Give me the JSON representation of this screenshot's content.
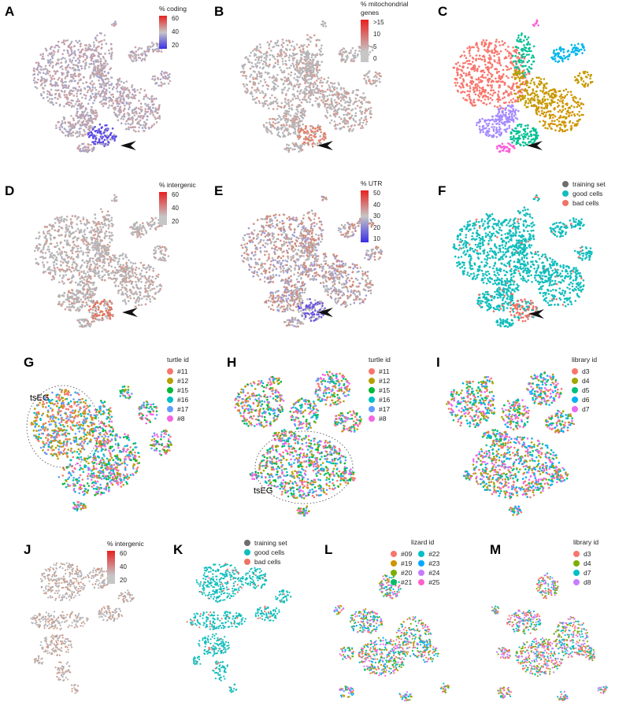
{
  "colors": {
    "base_gray": "#b5b5b9",
    "c1": "#f8766d",
    "c2": "#c49a00",
    "c3": "#53b400",
    "c4": "#00c094",
    "c5": "#00b6eb",
    "c6": "#a58aff",
    "c7": "#fb61d7",
    "teal": "#12bdbd",
    "grey_dot": "#6e6e6e",
    "bad": "#ef7466",
    "grad_blue": "#3a2ee6",
    "grad_gray": "#c6c6c6",
    "grad_red": "#e8201f"
  },
  "panels": [
    {
      "id": "A",
      "label": "A",
      "legend_type": "gradient",
      "legend_title": "% coding",
      "ticks": [
        "60",
        "40",
        "20"
      ],
      "grad": "blue-gray-red"
    },
    {
      "id": "B",
      "label": "B",
      "legend_type": "gradient",
      "legend_title": "% mitochondrial genes",
      "ticks": [
        ">15",
        "10",
        "5",
        "0"
      ],
      "grad": "gray-red"
    },
    {
      "id": "C",
      "label": "C",
      "legend_type": "none"
    },
    {
      "id": "D",
      "label": "D",
      "legend_type": "gradient",
      "legend_title": "% intergenic",
      "ticks": [
        "60",
        "40",
        "20"
      ],
      "grad": "gray-red"
    },
    {
      "id": "E",
      "label": "E",
      "legend_type": "gradient",
      "legend_title": "% UTR",
      "ticks": [
        "50",
        "40",
        "30",
        "20",
        "10"
      ],
      "grad": "blue-gray-red"
    },
    {
      "id": "F",
      "label": "F",
      "legend_type": "categorical",
      "legend_title": "",
      "items": [
        {
          "label": "training set",
          "color": "#6e6e6e"
        },
        {
          "label": "good cells",
          "color": "#12bdbd"
        },
        {
          "label": "bad cells",
          "color": "#ef7466"
        }
      ]
    },
    {
      "id": "G",
      "label": "G",
      "legend_type": "categorical",
      "legend_title": "turtle id",
      "items": [
        {
          "label": "#11",
          "color": "#f8766d"
        },
        {
          "label": "#12",
          "color": "#b79f00"
        },
        {
          "label": "#15",
          "color": "#00ba38"
        },
        {
          "label": "#16",
          "color": "#00bfc4"
        },
        {
          "label": "#17",
          "color": "#619cff"
        },
        {
          "label": "#8",
          "color": "#f564e3"
        }
      ],
      "annotation": "tsEG"
    },
    {
      "id": "H",
      "label": "H",
      "legend_type": "categorical",
      "legend_title": "turtle id",
      "items": [
        {
          "label": "#11",
          "color": "#f8766d"
        },
        {
          "label": "#12",
          "color": "#b79f00"
        },
        {
          "label": "#15",
          "color": "#00ba38"
        },
        {
          "label": "#16",
          "color": "#00bfc4"
        },
        {
          "label": "#17",
          "color": "#619cff"
        },
        {
          "label": "#8",
          "color": "#f564e3"
        }
      ],
      "annotation": "tsEG"
    },
    {
      "id": "I",
      "label": "I",
      "legend_type": "categorical",
      "legend_title": "library id",
      "items": [
        {
          "label": "d3",
          "color": "#f8766d"
        },
        {
          "label": "d4",
          "color": "#a3a500"
        },
        {
          "label": "d5",
          "color": "#00bf7d"
        },
        {
          "label": "d6",
          "color": "#00b0f6"
        },
        {
          "label": "d7",
          "color": "#e76bf3"
        }
      ]
    },
    {
      "id": "J",
      "label": "J",
      "legend_type": "gradient",
      "legend_title": "% intergenic",
      "ticks": [
        "60",
        "40",
        "20"
      ],
      "grad": "gray-red"
    },
    {
      "id": "K",
      "label": "K",
      "legend_type": "categorical",
      "legend_title": "",
      "items": [
        {
          "label": "training set",
          "color": "#6e6e6e"
        },
        {
          "label": "good cells",
          "color": "#12bdbd"
        },
        {
          "label": "bad cells",
          "color": "#ef7466"
        }
      ]
    },
    {
      "id": "L",
      "label": "L",
      "legend_type": "categorical2",
      "legend_title": "lizard id",
      "items": [
        {
          "label": "#09",
          "color": "#f8766d"
        },
        {
          "label": "#19",
          "color": "#cd9600"
        },
        {
          "label": "#20",
          "color": "#7cae00"
        },
        {
          "label": "#21",
          "color": "#00be67"
        },
        {
          "label": "#22",
          "color": "#00bfc4"
        },
        {
          "label": "#23",
          "color": "#00a9ff"
        },
        {
          "label": "#24",
          "color": "#c77cff"
        },
        {
          "label": "#25",
          "color": "#ff61cc"
        }
      ]
    },
    {
      "id": "M",
      "label": "M",
      "legend_type": "categorical",
      "legend_title": "library id",
      "items": [
        {
          "label": "d3",
          "color": "#f8766d"
        },
        {
          "label": "d4",
          "color": "#7cae00"
        },
        {
          "label": "d7",
          "color": "#00bfc4"
        },
        {
          "label": "d8",
          "color": "#c77cff"
        }
      ]
    }
  ]
}
